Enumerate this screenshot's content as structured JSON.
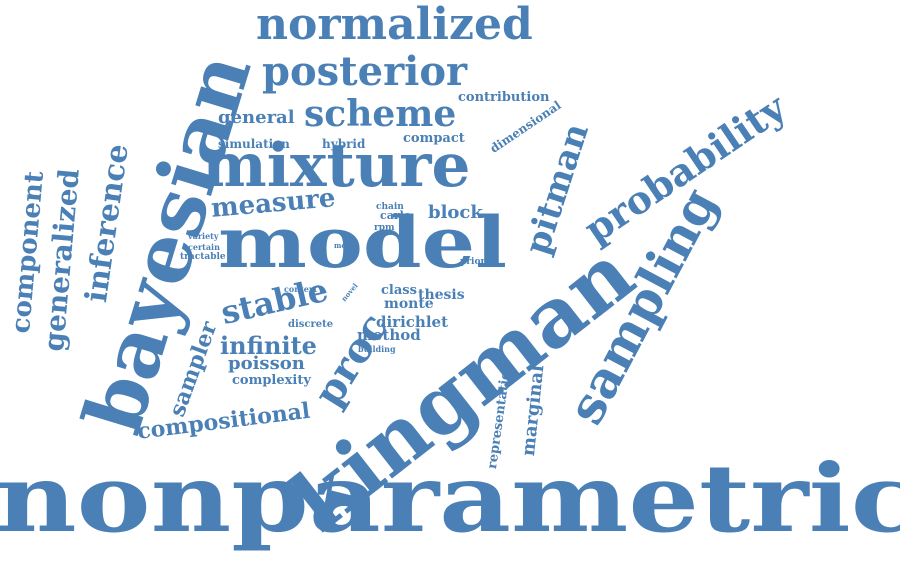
{
  "color": "#4a80b5",
  "words": [
    "nonparametric",
    "kingman",
    "bayesian",
    "mixture",
    "model",
    "sampling",
    "normalized",
    "posterior",
    "probability",
    "scheme",
    "pitman",
    "inference",
    "generalized",
    "component",
    "proc",
    "stable",
    "sampler",
    "compositional",
    "measure",
    "infinite",
    "marginal",
    "general",
    "poisson",
    "representation",
    "block",
    "dirichlet",
    "method",
    "monte",
    "class",
    "thesis",
    "contribution",
    "dimensional",
    "compact",
    "simulation",
    "hybrid",
    "complexity",
    "carlo",
    "chain",
    "rpm",
    "tractable",
    "variety",
    "certain",
    "context",
    "novel",
    "discrete",
    "building",
    "most",
    "prior"
  ]
}
